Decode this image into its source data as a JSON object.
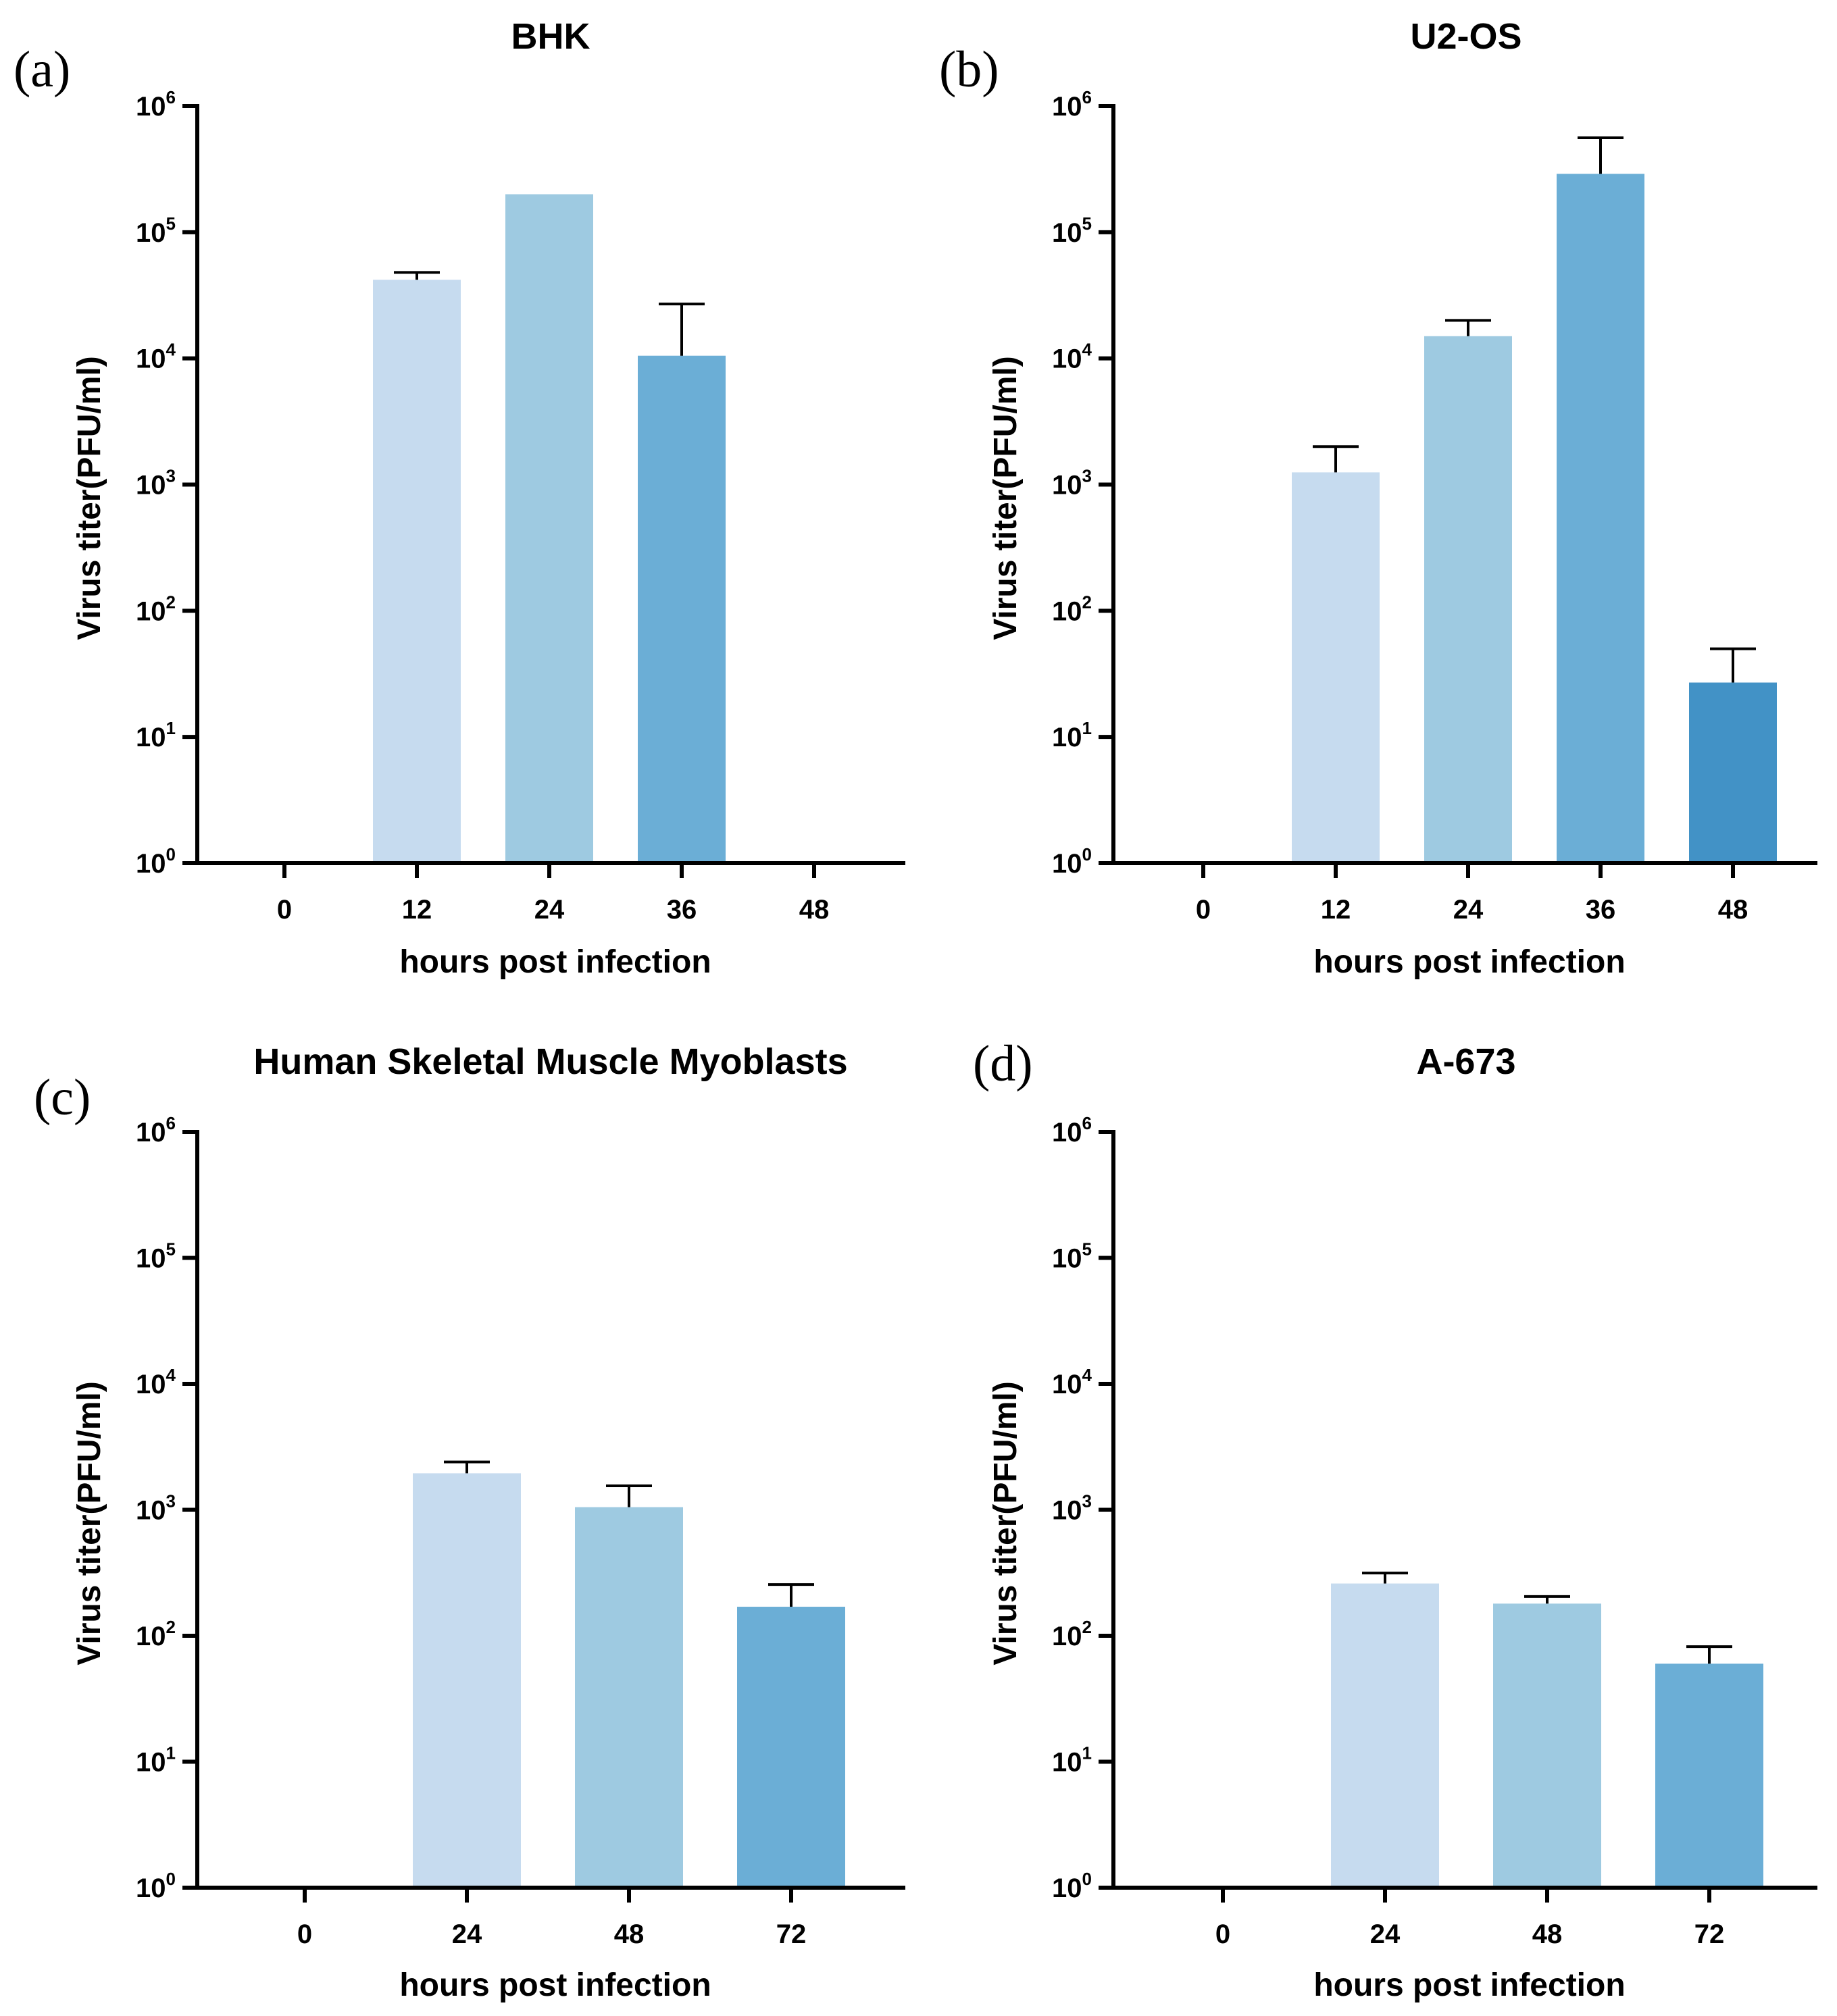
{
  "chart_data": [
    {
      "type": "bar",
      "panel_letter": "(a)",
      "title": "BHK",
      "xlabel": "hours post infection",
      "ylabel": "Virus titer(PFU/ml)",
      "yscale": "log",
      "ylim": [
        1,
        1000000
      ],
      "ytick_base": "10",
      "ytick_exponents": [
        "0",
        "1",
        "2",
        "3",
        "4",
        "5",
        "6"
      ],
      "categories": [
        "0",
        "12",
        "24",
        "36",
        "48"
      ],
      "values": [
        null,
        42000,
        200000,
        10500,
        null
      ],
      "error_upper": [
        null,
        48000,
        null,
        27000,
        null
      ],
      "colors": [
        "#c6dbef",
        "#c6dbef",
        "#9ecae1",
        "#6baed6",
        "#4292c6"
      ]
    },
    {
      "type": "bar",
      "panel_letter": "(b)",
      "title": "U2-OS",
      "xlabel": "hours post infection",
      "ylabel": "Virus titer(PFU/ml)",
      "yscale": "log",
      "ylim": [
        1,
        1000000
      ],
      "ytick_base": "10",
      "ytick_exponents": [
        "0",
        "1",
        "2",
        "3",
        "4",
        "5",
        "6"
      ],
      "categories": [
        "0",
        "12",
        "24",
        "36",
        "48"
      ],
      "values": [
        null,
        1250,
        15000,
        290000,
        27
      ],
      "error_upper": [
        null,
        2000,
        20000,
        560000,
        50
      ],
      "colors": [
        "#c6dbef",
        "#c6dbef",
        "#9ecae1",
        "#6baed6",
        "#4292c6"
      ]
    },
    {
      "type": "bar",
      "panel_letter": "(c)",
      "title": "Human Skeletal Muscle Myoblasts",
      "xlabel": "hours post infection",
      "ylabel": "Virus titer(PFU/ml)",
      "yscale": "log",
      "ylim": [
        1,
        1000000
      ],
      "ytick_base": "10",
      "ytick_exponents": [
        "0",
        "1",
        "2",
        "3",
        "4",
        "5",
        "6"
      ],
      "categories": [
        "0",
        "24",
        "48",
        "72"
      ],
      "values": [
        null,
        1950,
        1050,
        170
      ],
      "error_upper": [
        null,
        2400,
        1550,
        255
      ],
      "colors": [
        "#c6dbef",
        "#c6dbef",
        "#9ecae1",
        "#6baed6"
      ]
    },
    {
      "type": "bar",
      "panel_letter": "(d)",
      "title": "A-673",
      "xlabel": "hours post infection",
      "ylabel": "Virus titer(PFU/ml)",
      "yscale": "log",
      "ylim": [
        1,
        1000000
      ],
      "ytick_base": "10",
      "ytick_exponents": [
        "0",
        "1",
        "2",
        "3",
        "4",
        "5",
        "6"
      ],
      "categories": [
        "0",
        "24",
        "48",
        "72"
      ],
      "values": [
        null,
        260,
        180,
        60
      ],
      "error_upper": [
        null,
        315,
        205,
        82
      ],
      "colors": [
        "#c6dbef",
        "#c6dbef",
        "#9ecae1",
        "#6baed6"
      ]
    }
  ]
}
